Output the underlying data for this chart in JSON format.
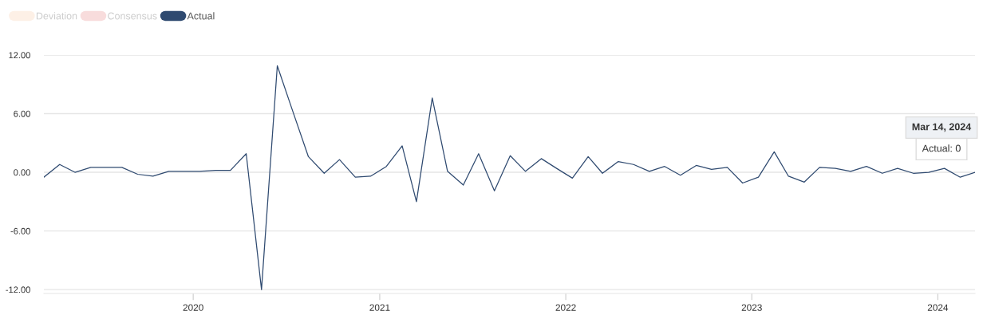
{
  "chart_data": {
    "type": "line",
    "x": [
      "2019-03-14",
      "2019-04-14",
      "2019-05-14",
      "2019-06-14",
      "2019-07-14",
      "2019-08-14",
      "2019-09-14",
      "2019-10-14",
      "2019-11-14",
      "2019-12-14",
      "2020-01-14",
      "2020-02-14",
      "2020-03-14",
      "2020-04-14",
      "2020-05-14",
      "2020-06-14",
      "2020-07-14",
      "2020-08-14",
      "2020-09-14",
      "2020-10-14",
      "2020-11-14",
      "2020-12-14",
      "2021-01-14",
      "2021-02-14",
      "2021-03-14",
      "2021-04-14",
      "2021-05-14",
      "2021-06-14",
      "2021-07-14",
      "2021-08-14",
      "2021-09-14",
      "2021-10-14",
      "2021-11-14",
      "2021-12-14",
      "2022-01-14",
      "2022-02-14",
      "2022-03-14",
      "2022-04-14",
      "2022-05-14",
      "2022-06-14",
      "2022-07-14",
      "2022-08-14",
      "2022-09-14",
      "2022-10-14",
      "2022-11-14",
      "2022-12-14",
      "2023-01-14",
      "2023-02-14",
      "2023-03-14",
      "2023-04-14",
      "2023-05-14",
      "2023-06-14",
      "2023-07-14",
      "2023-08-14",
      "2023-09-14",
      "2023-10-14",
      "2023-11-14",
      "2023-12-14",
      "2024-01-14",
      "2024-02-14",
      "2024-03-14"
    ],
    "series": [
      {
        "name": "Deviation",
        "color": "#fdf0e6",
        "values": [
          null,
          null,
          null,
          null,
          null,
          null,
          null,
          null,
          null,
          null,
          null,
          null,
          null,
          null,
          null,
          null,
          null,
          null,
          null,
          null,
          null,
          null,
          null,
          null,
          null,
          null,
          null,
          null,
          null,
          null,
          null,
          null,
          null,
          null,
          null,
          null,
          null,
          null,
          null,
          null,
          null,
          null,
          null,
          null,
          null,
          null,
          null,
          null,
          null,
          null,
          null,
          null,
          null,
          null,
          null,
          null,
          null,
          null,
          null,
          null,
          null
        ]
      },
      {
        "name": "Consensus",
        "color": "#f8dcdc",
        "values": [
          null,
          null,
          null,
          null,
          null,
          null,
          null,
          null,
          null,
          null,
          null,
          null,
          null,
          null,
          null,
          null,
          null,
          null,
          null,
          null,
          null,
          null,
          null,
          null,
          null,
          null,
          null,
          null,
          null,
          null,
          null,
          null,
          null,
          null,
          null,
          null,
          null,
          null,
          null,
          null,
          null,
          null,
          null,
          null,
          null,
          null,
          null,
          null,
          null,
          null,
          null,
          null,
          null,
          null,
          null,
          null,
          null,
          null,
          null,
          null,
          null
        ]
      },
      {
        "name": "Actual",
        "color": "#2f4a70",
        "values": [
          -0.5,
          0.8,
          0.0,
          0.5,
          0.5,
          0.5,
          -0.2,
          -0.4,
          0.1,
          0.1,
          0.1,
          0.2,
          0.2,
          1.9,
          -12.0,
          10.9,
          6.3,
          1.6,
          -0.1,
          1.3,
          -0.5,
          -0.4,
          0.6,
          2.7,
          -3.0,
          7.6,
          0.1,
          -1.3,
          1.9,
          -1.9,
          1.7,
          0.1,
          1.4,
          0.4,
          -0.6,
          1.6,
          -0.1,
          1.1,
          0.8,
          0.1,
          0.6,
          -0.3,
          0.7,
          0.3,
          0.5,
          -1.1,
          -0.5,
          2.1,
          -0.4,
          -1.0,
          0.5,
          0.4,
          0.1,
          0.6,
          -0.1,
          0.4,
          -0.1,
          0.0,
          0.4,
          -0.5,
          0
        ]
      }
    ],
    "xlim": [
      "2019-03-14",
      "2024-03-14"
    ],
    "xticks": [
      "2020",
      "2021",
      "2022",
      "2023",
      "2024"
    ],
    "ylim": [
      -12.4,
      12
    ],
    "yticks": [
      {
        "value": 12,
        "label": "12.00"
      },
      {
        "value": 6,
        "label": "6.00"
      },
      {
        "value": 0,
        "label": "0.00"
      },
      {
        "value": -6,
        "label": "-6.00"
      },
      {
        "value": -12,
        "label": "-12.00"
      }
    ],
    "grid": "y",
    "legend": "top left",
    "marker": "none",
    "line_style": "solid",
    "annotations": [
      "Mar 14, 2024",
      "Actual: 0"
    ]
  }
}
